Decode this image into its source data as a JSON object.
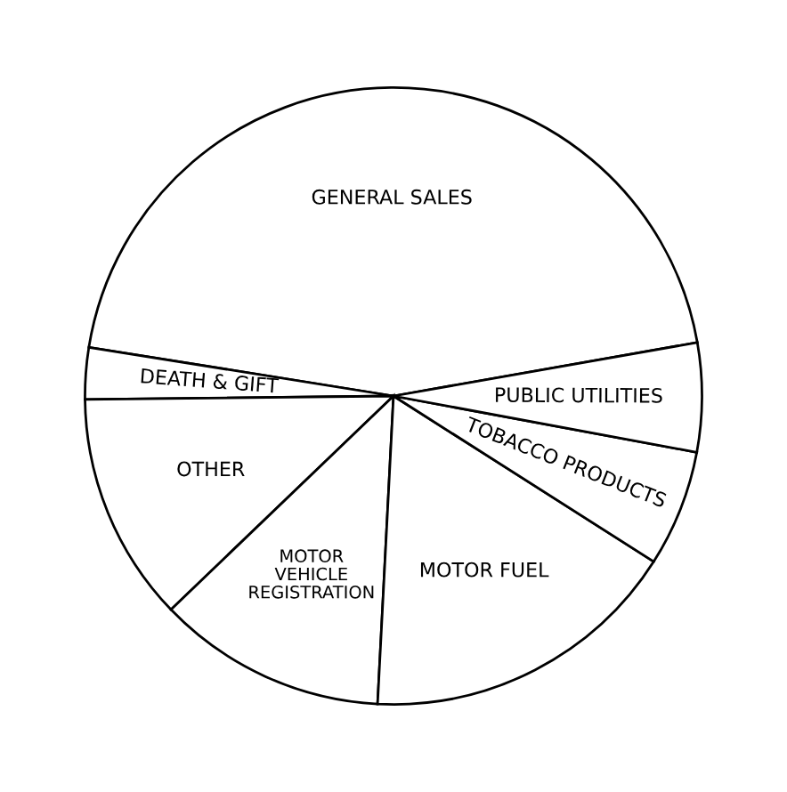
{
  "chart_data": {
    "type": "pie",
    "categories": [
      "GENERAL SALES",
      "DEATH & GIFT",
      "OTHER",
      "MOTOR\nVEHICLE\nREGISTRATION",
      "MOTOR FUEL",
      "TOBACCO PRODUCTS",
      "PUBLIC UTILITIES"
    ],
    "values": [
      44.7,
      2.7,
      12.0,
      12.0,
      16.8,
      6.1,
      5.7
    ],
    "colors": [
      "#ffffff",
      "#ffffff",
      "#ffffff",
      "#ffffff",
      "#ffffff",
      "#ffffff",
      "#ffffff"
    ]
  }
}
